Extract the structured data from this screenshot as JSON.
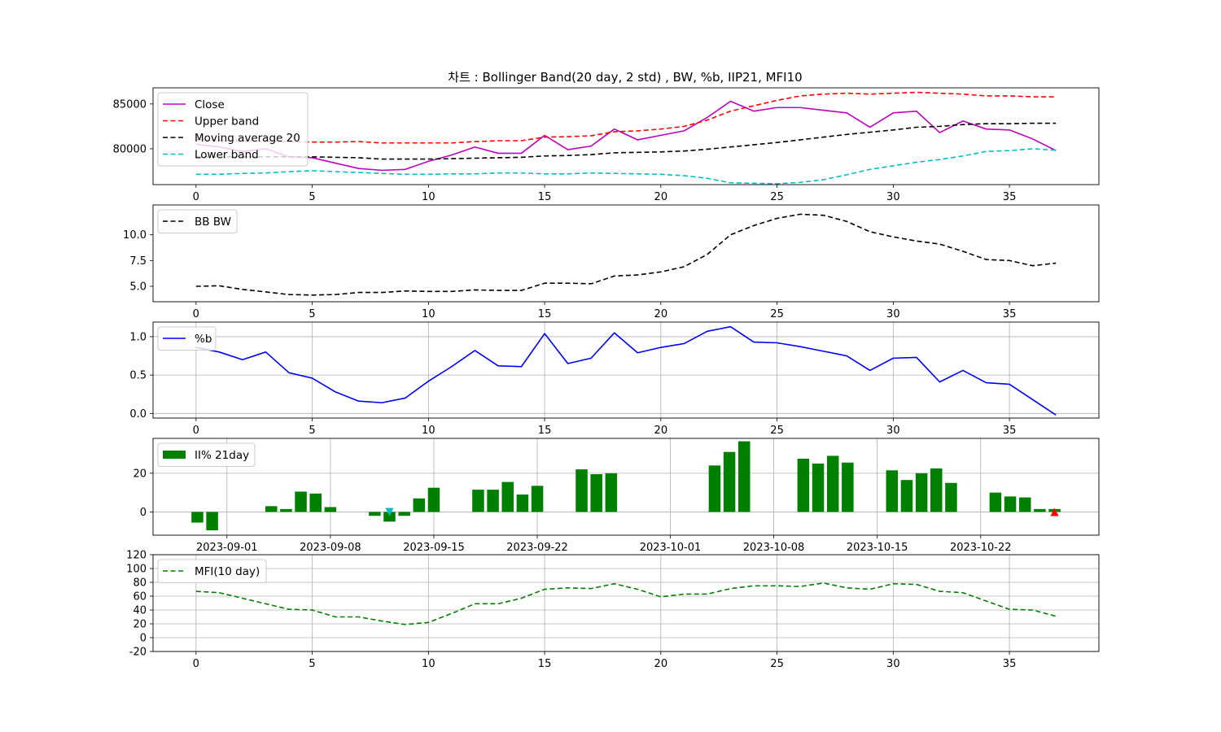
{
  "figure": {
    "title": "차트 : Bollinger Band(20 day, 2 std) , BW, %b, IIP21, MFI10"
  },
  "chart_data": [
    {
      "type": "line",
      "panel": "bollinger",
      "x": [
        0,
        1,
        2,
        3,
        4,
        5,
        6,
        7,
        8,
        9,
        10,
        11,
        12,
        13,
        14,
        15,
        16,
        17,
        18,
        19,
        20,
        21,
        22,
        23,
        24,
        25,
        26,
        27,
        28,
        29,
        30,
        31,
        32,
        33,
        34,
        35,
        36,
        37
      ],
      "xticks": [
        0,
        5,
        10,
        15,
        20,
        25,
        30,
        35
      ],
      "xlim": [
        -1.85,
        38.85
      ],
      "ylim": [
        76000,
        86800
      ],
      "yticks": [
        80000,
        85000
      ],
      "grid": false,
      "legend_position": "upper-left",
      "series": [
        {
          "name": "Close",
          "color": "#bf00bf",
          "style": "solid",
          "values": [
            80500,
            80200,
            79700,
            80000,
            79100,
            79000,
            78400,
            77800,
            77600,
            77700,
            78600,
            79300,
            80200,
            79500,
            79500,
            81500,
            79900,
            80300,
            82200,
            81000,
            81500,
            82000,
            83500,
            85300,
            84200,
            84600,
            84600,
            84300,
            84000,
            82400,
            84000,
            84200,
            81800,
            83100,
            82200,
            82100,
            81100,
            79800
          ]
        },
        {
          "name": "Upper band",
          "color": "#ff0000",
          "style": "dashed",
          "values": [
            81000,
            80950,
            80900,
            80850,
            80800,
            80750,
            80750,
            80800,
            80650,
            80650,
            80650,
            80650,
            80800,
            80900,
            80900,
            81300,
            81350,
            81450,
            81900,
            82000,
            82200,
            82500,
            83200,
            84200,
            84800,
            85400,
            85900,
            86100,
            86200,
            86100,
            86200,
            86300,
            86200,
            86100,
            85900,
            85900,
            85800,
            85800
          ]
        },
        {
          "name": "Moving average 20",
          "color": "#000000",
          "style": "dashed",
          "values": [
            79100,
            79100,
            79100,
            79100,
            79100,
            79100,
            79050,
            79000,
            78850,
            78850,
            78850,
            78900,
            78950,
            79000,
            79050,
            79200,
            79250,
            79350,
            79550,
            79600,
            79650,
            79750,
            79950,
            80200,
            80450,
            80700,
            81000,
            81300,
            81600,
            81850,
            82100,
            82400,
            82500,
            82700,
            82800,
            82800,
            82850,
            82850
          ]
        },
        {
          "name": "Lower band",
          "color": "#00bfbf",
          "style": "dashed",
          "values": [
            77150,
            77150,
            77250,
            77300,
            77450,
            77550,
            77450,
            77350,
            77250,
            77150,
            77150,
            77200,
            77200,
            77300,
            77300,
            77200,
            77200,
            77300,
            77250,
            77200,
            77150,
            77000,
            76700,
            76200,
            76150,
            76100,
            76250,
            76550,
            77100,
            77700,
            78100,
            78500,
            78800,
            79200,
            79700,
            79800,
            80000,
            79850
          ]
        }
      ]
    },
    {
      "type": "line",
      "panel": "bandwidth",
      "x": [
        0,
        1,
        2,
        3,
        4,
        5,
        6,
        7,
        8,
        9,
        10,
        11,
        12,
        13,
        14,
        15,
        16,
        17,
        18,
        19,
        20,
        21,
        22,
        23,
        24,
        25,
        26,
        27,
        28,
        29,
        30,
        31,
        32,
        33,
        34,
        35,
        36,
        37
      ],
      "xticks": [
        0,
        5,
        10,
        15,
        20,
        25,
        30,
        35
      ],
      "xlim": [
        -1.85,
        38.85
      ],
      "ylim": [
        3.5,
        12.9
      ],
      "yticks": [
        5.0,
        7.5,
        10.0
      ],
      "ytick_labels": [
        "5.0",
        "7.5",
        "10.0"
      ],
      "grid": false,
      "legend_position": "upper-left",
      "series": [
        {
          "name": "BB BW",
          "color": "#000000",
          "style": "dashed",
          "values": [
            5.0,
            5.05,
            4.7,
            4.45,
            4.2,
            4.15,
            4.2,
            4.4,
            4.4,
            4.55,
            4.5,
            4.5,
            4.65,
            4.6,
            4.6,
            5.3,
            5.3,
            5.25,
            6.0,
            6.1,
            6.4,
            6.9,
            8.1,
            10.0,
            10.9,
            11.6,
            12.0,
            11.9,
            11.3,
            10.3,
            9.8,
            9.4,
            9.1,
            8.4,
            7.6,
            7.5,
            7.0,
            7.25
          ]
        }
      ]
    },
    {
      "type": "line",
      "panel": "percent_b",
      "x": [
        0,
        1,
        2,
        3,
        4,
        5,
        6,
        7,
        8,
        9,
        10,
        11,
        12,
        13,
        14,
        15,
        16,
        17,
        18,
        19,
        20,
        21,
        22,
        23,
        24,
        25,
        26,
        27,
        28,
        29,
        30,
        31,
        32,
        33,
        34,
        35,
        36,
        37
      ],
      "xticks": [
        0,
        5,
        10,
        15,
        20,
        25,
        30,
        35
      ],
      "xlim": [
        -1.85,
        38.85
      ],
      "ylim": [
        -0.06,
        1.19
      ],
      "yticks": [
        0.0,
        0.5,
        1.0
      ],
      "ytick_labels": [
        "0.0",
        "0.5",
        "1.0"
      ],
      "grid": true,
      "legend_position": "upper-left",
      "series": [
        {
          "name": "%b",
          "color": "#0000ff",
          "style": "solid",
          "values": [
            0.86,
            0.8,
            0.7,
            0.8,
            0.53,
            0.46,
            0.28,
            0.16,
            0.14,
            0.2,
            0.42,
            0.61,
            0.82,
            0.62,
            0.61,
            1.04,
            0.65,
            0.72,
            1.05,
            0.79,
            0.86,
            0.91,
            1.07,
            1.13,
            0.93,
            0.92,
            0.87,
            0.81,
            0.75,
            0.56,
            0.72,
            0.73,
            0.41,
            0.56,
            0.4,
            0.38,
            0.18,
            -0.02
          ]
        }
      ]
    },
    {
      "type": "bar",
      "panel": "iip",
      "x_dates": [
        "2023-08-30",
        "2023-08-31",
        "2023-09-04",
        "2023-09-05",
        "2023-09-06",
        "2023-09-07",
        "2023-09-08",
        "2023-09-11",
        "2023-09-12",
        "2023-09-13",
        "2023-09-14",
        "2023-09-15",
        "2023-09-18",
        "2023-09-19",
        "2023-09-20",
        "2023-09-21",
        "2023-09-22",
        "2023-09-25",
        "2023-09-26",
        "2023-09-27",
        "2023-10-04",
        "2023-10-05",
        "2023-10-06",
        "2023-10-10",
        "2023-10-11",
        "2023-10-12",
        "2023-10-13",
        "2023-10-16",
        "2023-10-17",
        "2023-10-18",
        "2023-10-19",
        "2023-10-20",
        "2023-10-23",
        "2023-10-24",
        "2023-10-25",
        "2023-10-26",
        "2023-10-27"
      ],
      "values": [
        -5.5,
        -9.5,
        3,
        1.5,
        10.5,
        9.5,
        2.5,
        -2,
        -5,
        -2,
        7,
        12.5,
        11.5,
        11.5,
        15.5,
        9,
        13.5,
        22,
        19.5,
        20,
        24,
        31,
        36.5,
        27.5,
        25,
        29,
        25.5,
        21.5,
        16.5,
        20,
        22.5,
        15,
        10,
        8,
        7.5,
        1.5,
        1.5
      ],
      "xticks": [
        "2023-09-01",
        "2023-09-08",
        "2023-09-15",
        "2023-09-22",
        "2023-10-01",
        "2023-10-08",
        "2023-10-15",
        "2023-10-22"
      ],
      "xlim": [
        "2023-08-27",
        "2023-10-30"
      ],
      "ylim": [
        -12,
        38
      ],
      "yticks": [
        0,
        20
      ],
      "grid": true,
      "legend_position": "upper-left",
      "series_name": "II% 21day",
      "color": "#008000",
      "markers": [
        {
          "date": "2023-09-12",
          "value": 0,
          "symbol": "triangle-down",
          "color": "#00bfbf"
        },
        {
          "date": "2023-10-27",
          "value": 0,
          "symbol": "triangle-up",
          "color": "#ff0000"
        }
      ]
    },
    {
      "type": "line",
      "panel": "mfi",
      "x": [
        0,
        1,
        2,
        3,
        4,
        5,
        6,
        7,
        8,
        9,
        10,
        11,
        12,
        13,
        14,
        15,
        16,
        17,
        18,
        19,
        20,
        21,
        22,
        23,
        24,
        25,
        26,
        27,
        28,
        29,
        30,
        31,
        32,
        33,
        34,
        35,
        36,
        37
      ],
      "xticks": [
        0,
        5,
        10,
        15,
        20,
        25,
        30,
        35
      ],
      "xlim": [
        -1.85,
        38.85
      ],
      "ylim": [
        -20,
        120
      ],
      "yticks": [
        -20,
        0,
        20,
        40,
        60,
        80,
        100,
        120
      ],
      "grid": true,
      "legend_position": "upper-left",
      "series": [
        {
          "name": "MFI(10 day)",
          "color": "#008000",
          "style": "dashed",
          "values": [
            67,
            65,
            57,
            49,
            41,
            40,
            30,
            30,
            24,
            19,
            22,
            35,
            49,
            49,
            57,
            70,
            72,
            71,
            78,
            70,
            59,
            63,
            63,
            71,
            75,
            75,
            74,
            79,
            72,
            70,
            78,
            77,
            67,
            65,
            53,
            41,
            40,
            31
          ]
        }
      ]
    }
  ]
}
